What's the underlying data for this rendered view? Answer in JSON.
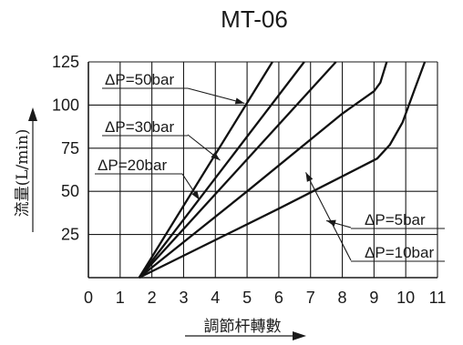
{
  "chart_data": {
    "type": "line",
    "title": "MT-06",
    "xlabel": "調節杆轉數",
    "ylabel": "流量(L/min)",
    "xlim": [
      0,
      11
    ],
    "ylim": [
      0,
      125
    ],
    "x_ticks": [
      "0",
      "1",
      "2",
      "3",
      "4",
      "5",
      "6",
      "7",
      "8",
      "9",
      "10",
      "11"
    ],
    "y_ticks": [
      "25",
      "50",
      "75",
      "100",
      "125"
    ],
    "grid": true,
    "series": [
      {
        "name": "ΔP=50bar",
        "x": [
          1.6,
          5.8
        ],
        "y": [
          0,
          125
        ]
      },
      {
        "name": "ΔP=30bar",
        "x": [
          1.6,
          6.8
        ],
        "y": [
          0,
          125
        ]
      },
      {
        "name": "ΔP=20bar",
        "x": [
          1.6,
          7.8
        ],
        "y": [
          0,
          125
        ]
      },
      {
        "name": "ΔP=10bar",
        "x": [
          1.6,
          5,
          8,
          9,
          9.2,
          9.4
        ],
        "y": [
          0,
          50,
          95,
          108,
          113,
          125
        ]
      },
      {
        "name": "ΔP=5bar",
        "x": [
          1.6,
          6,
          9.1,
          9.5,
          9.9,
          10.3,
          10.6
        ],
        "y": [
          0,
          40,
          69,
          77,
          90,
          110,
          125
        ]
      }
    ]
  }
}
